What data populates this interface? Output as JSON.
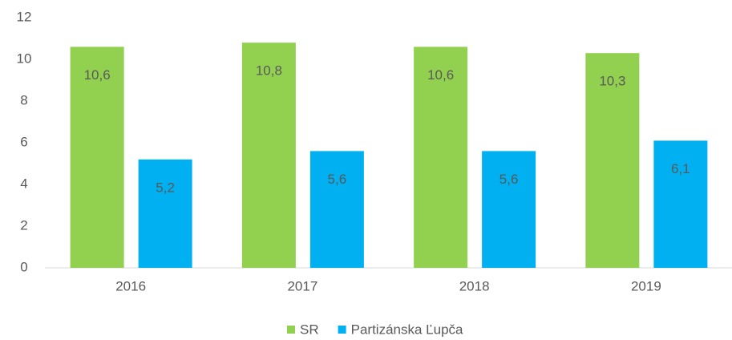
{
  "chart_data": {
    "type": "bar",
    "categories": [
      "2016",
      "2017",
      "2018",
      "2019"
    ],
    "series": [
      {
        "name": "SR",
        "color": "#92d050",
        "values": [
          10.6,
          10.8,
          10.6,
          10.3
        ],
        "value_labels": [
          "10,6",
          "10,8",
          "10,6",
          "10,3"
        ]
      },
      {
        "name": "Partizánska Ľupča",
        "color": "#00b0f0",
        "values": [
          5.2,
          5.6,
          5.6,
          6.1
        ],
        "value_labels": [
          "5,2",
          "5,6",
          "5,6",
          "6,1"
        ]
      }
    ],
    "ylim": [
      0,
      12
    ],
    "yticks": [
      0,
      2,
      4,
      6,
      8,
      10,
      12
    ],
    "grid": false,
    "legend": "bottom"
  }
}
